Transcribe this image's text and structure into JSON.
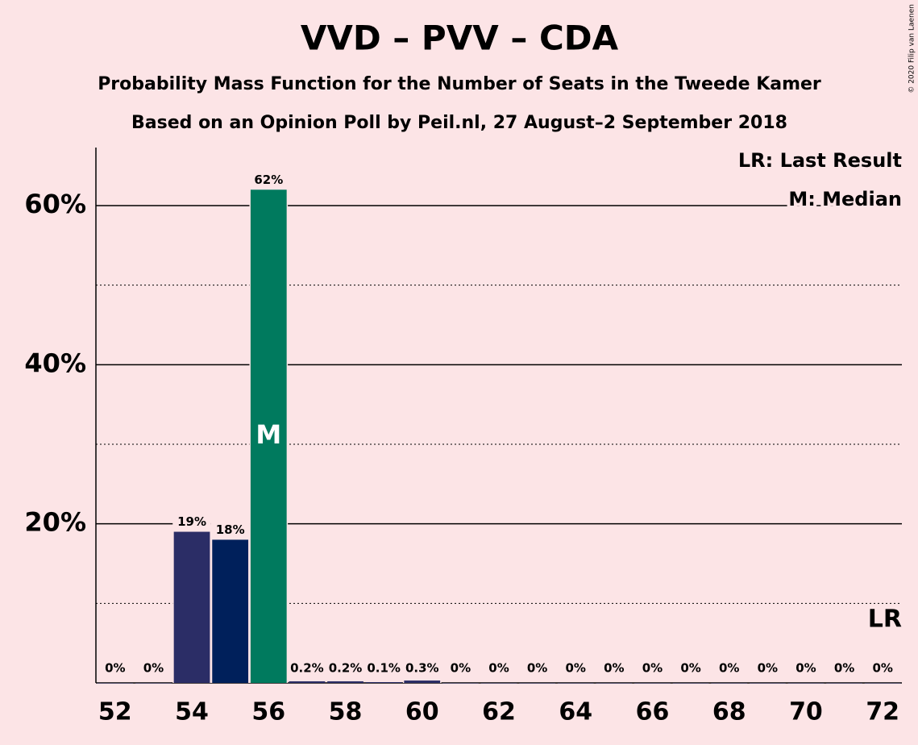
{
  "chart_data": {
    "type": "bar",
    "title": "VVD – PVV – CDA",
    "subtitle": "Probability Mass Function for the Number of Seats in the Tweede Kamer",
    "subtitle2": "Based on an Opinion Poll by Peil.nl, 27 August–2 September 2018",
    "copyright": "© 2020 Filip van Laenen",
    "x": [
      52,
      53,
      54,
      55,
      56,
      57,
      58,
      59,
      60,
      61,
      62,
      63,
      64,
      65,
      66,
      67,
      68,
      69,
      70,
      71,
      72
    ],
    "values": [
      0,
      0,
      19,
      18,
      62,
      0.2,
      0.2,
      0.1,
      0.3,
      0,
      0,
      0,
      0,
      0,
      0,
      0,
      0,
      0,
      0,
      0,
      0
    ],
    "value_labels": [
      "0%",
      "0%",
      "19%",
      "18%",
      "62%",
      "0.2%",
      "0.2%",
      "0.1%",
      "0.3%",
      "0%",
      "0%",
      "0%",
      "0%",
      "0%",
      "0%",
      "0%",
      "0%",
      "0%",
      "0%",
      "0%",
      "0%"
    ],
    "colors": [
      "#2b2d66",
      "#2b2d66",
      "#2b2d66",
      "#00205b",
      "#007a5e",
      "#2b2d66",
      "#2b2d66",
      "#2b2d66",
      "#2b2d66",
      "#2b2d66",
      "#2b2d66",
      "#2b2d66",
      "#2b2d66",
      "#2b2d66",
      "#2b2d66",
      "#2b2d66",
      "#2b2d66",
      "#2b2d66",
      "#2b2d66",
      "#2b2d66",
      "#2b2d66"
    ],
    "xlim": [
      51.5,
      72.5
    ],
    "xticks": [
      52,
      54,
      56,
      58,
      60,
      62,
      64,
      66,
      68,
      70,
      72
    ],
    "ylim": [
      0,
      67.3
    ],
    "yticks": [
      {
        "value": 20,
        "label": "20%"
      },
      {
        "value": 40,
        "label": "40%"
      },
      {
        "value": 60,
        "label": "60%"
      }
    ],
    "minor_yticks": [
      10,
      30,
      50
    ],
    "grid": true,
    "median": 56,
    "median_label": "M",
    "last_result": 72,
    "last_result_label": "LR",
    "legend": [
      "LR: Last Result",
      "M: Median"
    ],
    "legend_position": "upper right"
  }
}
